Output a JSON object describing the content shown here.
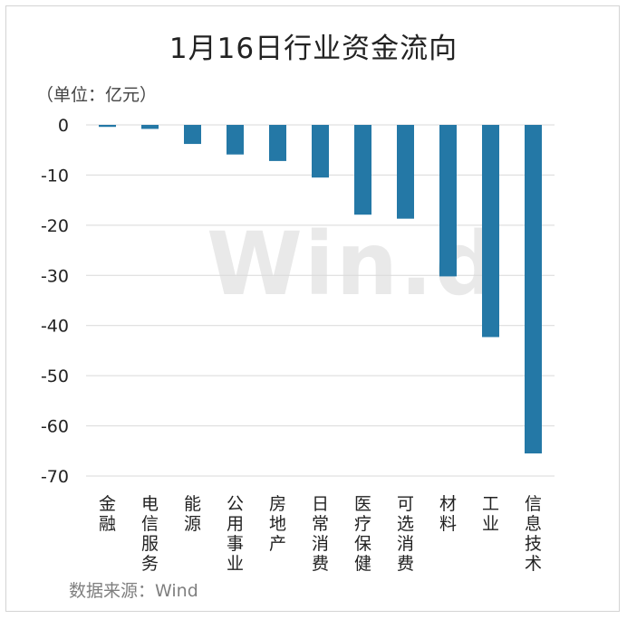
{
  "title": "1月16日行业资金流向",
  "unit_label": "（单位：亿元）",
  "source": "数据来源：Wind",
  "watermark": "Win.d",
  "colors": {
    "bar": "#2478a6",
    "grid": "#d9d9d9",
    "text": "#222222"
  },
  "chart_data": {
    "type": "bar",
    "title": "1月16日行业资金流向",
    "ylabel": "（单位：亿元）",
    "xlabel": "",
    "ylim": [
      -70,
      0
    ],
    "yticks": [
      0,
      -10,
      -20,
      -30,
      -40,
      -50,
      -60,
      -70
    ],
    "grid": true,
    "categories": [
      "金融",
      "电信服务",
      "能源",
      "公用事业",
      "房地产",
      "日常消费",
      "医疗保健",
      "可选消费",
      "材料",
      "工业",
      "信息技术"
    ],
    "values": [
      -0.4,
      -0.8,
      -3.8,
      -5.9,
      -7.2,
      -10.5,
      -17.9,
      -18.7,
      -30.2,
      -42.3,
      -65.5
    ]
  }
}
